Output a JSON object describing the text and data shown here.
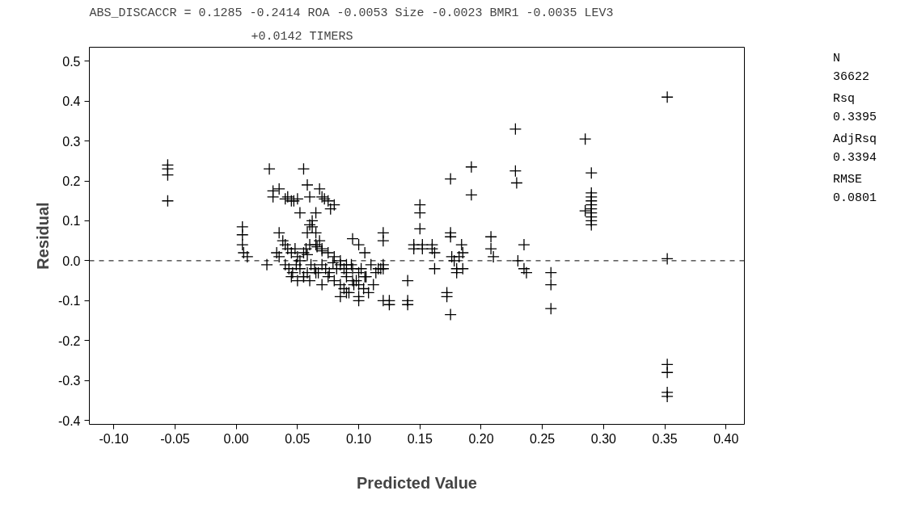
{
  "chart_data": {
    "type": "scatter",
    "title": "ABS_DISCACCR = 0.1285 -0.2414  ROA -0.0053 Size -0.0023 BMR1 -0.0035 LEV3",
    "subtitle": "+0.0142 TIMERS",
    "xlabel": "Predicted Value",
    "ylabel": "Residual",
    "annotations": [
      "N",
      "36622",
      "Rsq",
      "0.3395",
      "AdjRsq",
      "0.3394",
      "RMSE",
      "0.0801"
    ],
    "marker": "cross",
    "grid": false,
    "xlim": [
      -0.12,
      0.415
    ],
    "ylim": [
      -0.41,
      0.535
    ],
    "xticks": [
      {
        "value": -0.1,
        "label": "-0.10"
      },
      {
        "value": -0.05,
        "label": "-0.05"
      },
      {
        "value": 0,
        "label": "0.00"
      },
      {
        "value": 0.05,
        "label": "0.05"
      },
      {
        "value": 0.1,
        "label": "0.10"
      },
      {
        "value": 0.15,
        "label": "0.15"
      },
      {
        "value": 0.2,
        "label": "0.20"
      },
      {
        "value": 0.25,
        "label": "0.25"
      },
      {
        "value": 0.3,
        "label": "0.30"
      },
      {
        "value": 0.35,
        "label": "0.35"
      },
      {
        "value": 0.4,
        "label": "0.40"
      }
    ],
    "yticks": [
      {
        "value": -0.4,
        "label": "-0.4"
      },
      {
        "value": -0.3,
        "label": "-0.3"
      },
      {
        "value": -0.2,
        "label": "-0.2"
      },
      {
        "value": -0.1,
        "label": "-0.1"
      },
      {
        "value": 0,
        "label": "0.0"
      },
      {
        "value": 0.1,
        "label": "0.1"
      },
      {
        "value": 0.2,
        "label": "0.2"
      },
      {
        "value": 0.3,
        "label": "0.3"
      },
      {
        "value": 0.4,
        "label": "0.4"
      },
      {
        "value": 0.5,
        "label": "0.5"
      }
    ],
    "ref_lines": [
      {
        "axis": "y",
        "value": 0,
        "line_style": "dashed",
        "color": "#000000"
      }
    ],
    "series": [
      {
        "color": "#000000",
        "x": [
          -0.056,
          -0.056,
          -0.056,
          -0.056,
          0.005,
          0.005,
          0.005,
          0.006,
          0.009,
          0.025,
          0.027,
          0.03,
          0.03,
          0.035,
          0.033,
          0.035,
          0.04,
          0.042,
          0.045,
          0.047,
          0.05,
          0.052,
          0.055,
          0.058,
          0.06,
          0.062,
          0.065,
          0.068,
          0.07,
          0.072,
          0.075,
          0.077,
          0.08,
          0.058,
          0.06,
          0.062,
          0.065,
          0.068,
          0.057,
          0.06,
          0.066,
          0.07,
          0.035,
          0.038,
          0.04,
          0.042,
          0.045,
          0.048,
          0.05,
          0.052,
          0.055,
          0.058,
          0.04,
          0.043,
          0.046,
          0.049,
          0.052,
          0.055,
          0.058,
          0.061,
          0.064,
          0.067,
          0.07,
          0.073,
          0.076,
          0.079,
          0.082,
          0.085,
          0.088,
          0.045,
          0.05,
          0.055,
          0.06,
          0.065,
          0.07,
          0.075,
          0.08,
          0.085,
          0.09,
          0.095,
          0.1,
          0.065,
          0.07,
          0.075,
          0.08,
          0.085,
          0.09,
          0.095,
          0.1,
          0.105,
          0.088,
          0.092,
          0.096,
          0.1,
          0.104,
          0.108,
          0.112,
          0.116,
          0.12,
          0.09,
          0.094,
          0.098,
          0.102,
          0.106,
          0.11,
          0.114,
          0.118,
          0.095,
          0.1,
          0.105,
          0.085,
          0.09,
          0.1,
          0.12,
          0.12,
          0.12,
          0.12,
          0.125,
          0.125,
          0.14,
          0.14,
          0.14,
          0.145,
          0.145,
          0.15,
          0.15,
          0.15,
          0.152,
          0.152,
          0.16,
          0.16,
          0.162,
          0.162,
          0.172,
          0.172,
          0.175,
          0.175,
          0.175,
          0.176,
          0.178,
          0.18,
          0.18,
          0.182,
          0.184,
          0.185,
          0.185,
          0.175,
          0.192,
          0.192,
          0.208,
          0.208,
          0.21,
          0.228,
          0.228,
          0.229,
          0.23,
          0.235,
          0.235,
          0.237,
          0.257,
          0.257,
          0.257,
          0.285,
          0.285,
          0.29,
          0.29,
          0.29,
          0.29,
          0.29,
          0.29,
          0.29,
          0.29,
          0.29,
          0.29,
          0.352,
          0.352,
          0.352,
          0.352,
          0.352,
          0.352
        ],
        "values": [
          0.24,
          0.23,
          0.215,
          0.15,
          0.085,
          0.065,
          0.04,
          0.02,
          0.01,
          -0.01,
          0.23,
          0.16,
          0.175,
          0.18,
          0.02,
          0.01,
          0.155,
          0.16,
          0.15,
          0.15,
          0.155,
          0.12,
          0.23,
          0.19,
          0.16,
          0.1,
          0.12,
          0.18,
          0.16,
          0.155,
          0.15,
          0.13,
          0.14,
          0.07,
          0.09,
          0.085,
          0.07,
          0.05,
          0.03,
          0.04,
          0.035,
          0.025,
          0.07,
          0.05,
          0.04,
          0.03,
          0.02,
          0.03,
          0.01,
          0.0,
          0.02,
          0.015,
          -0.01,
          -0.02,
          -0.03,
          -0.01,
          -0.02,
          -0.04,
          -0.03,
          -0.01,
          -0.02,
          -0.03,
          -0.01,
          -0.02,
          -0.03,
          -0.005,
          -0.02,
          -0.01,
          -0.02,
          -0.04,
          -0.05,
          -0.04,
          -0.05,
          -0.03,
          -0.06,
          -0.04,
          -0.05,
          -0.06,
          -0.04,
          -0.05,
          -0.06,
          0.04,
          0.03,
          0.02,
          0.01,
          0.0,
          -0.01,
          -0.02,
          -0.03,
          -0.04,
          -0.07,
          -0.08,
          -0.06,
          -0.09,
          -0.07,
          -0.08,
          -0.06,
          -0.02,
          -0.01,
          -0.03,
          -0.01,
          -0.05,
          -0.02,
          -0.04,
          -0.01,
          -0.03,
          -0.02,
          0.055,
          0.04,
          0.02,
          -0.09,
          -0.08,
          -0.1,
          0.07,
          0.05,
          -0.02,
          -0.1,
          -0.1,
          -0.11,
          -0.1,
          -0.11,
          -0.05,
          0.03,
          0.04,
          0.14,
          0.12,
          0.08,
          0.04,
          0.03,
          0.04,
          0.03,
          0.02,
          -0.02,
          -0.08,
          -0.09,
          0.06,
          0.07,
          -0.135,
          0.01,
          0.0,
          -0.02,
          -0.03,
          0.01,
          0.04,
          0.02,
          -0.02,
          0.205,
          0.235,
          0.165,
          0.06,
          0.03,
          0.01,
          0.33,
          0.225,
          0.195,
          0.0,
          -0.02,
          0.04,
          -0.03,
          -0.03,
          -0.06,
          -0.12,
          0.305,
          0.125,
          0.22,
          0.17,
          0.16,
          0.15,
          0.14,
          0.13,
          0.12,
          0.11,
          0.1,
          0.09,
          0.41,
          0.005,
          -0.26,
          -0.28,
          -0.33,
          -0.34
        ]
      }
    ]
  }
}
